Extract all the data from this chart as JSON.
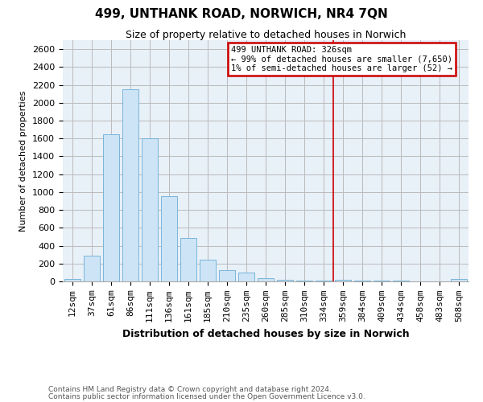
{
  "title": "499, UNTHANK ROAD, NORWICH, NR4 7QN",
  "subtitle": "Size of property relative to detached houses in Norwich",
  "xlabel": "Distribution of detached houses by size in Norwich",
  "ylabel": "Number of detached properties",
  "bar_labels": [
    "12sqm",
    "37sqm",
    "61sqm",
    "86sqm",
    "111sqm",
    "136sqm",
    "161sqm",
    "185sqm",
    "210sqm",
    "235sqm",
    "260sqm",
    "285sqm",
    "310sqm",
    "334sqm",
    "359sqm",
    "384sqm",
    "409sqm",
    "434sqm",
    "458sqm",
    "483sqm",
    "508sqm"
  ],
  "bar_values": [
    25,
    290,
    1650,
    2150,
    1600,
    950,
    490,
    240,
    130,
    100,
    40,
    20,
    10,
    10,
    15,
    8,
    5,
    8,
    2,
    2,
    25
  ],
  "bar_face_color": "#cce4f5",
  "bar_edge_color": "#6aaed6",
  "vline_x_index": 13,
  "vline_color": "#cc0000",
  "annotation_text": "499 UNTHANK ROAD: 326sqm\n← 99% of detached houses are smaller (7,650)\n1% of semi-detached houses are larger (52) →",
  "annotation_box_color": "#ffffff",
  "annotation_box_edge": "#cc0000",
  "footer_line1": "Contains HM Land Registry data © Crown copyright and database right 2024.",
  "footer_line2": "Contains public sector information licensed under the Open Government Licence v3.0.",
  "ylim": [
    0,
    2700
  ],
  "yticks": [
    0,
    200,
    400,
    600,
    800,
    1000,
    1200,
    1400,
    1600,
    1800,
    2000,
    2200,
    2400,
    2600
  ],
  "bg_color": "#e8f0f8",
  "grid_color": "#bbbbbb",
  "title_fontsize": 11,
  "subtitle_fontsize": 9,
  "xlabel_fontsize": 9,
  "ylabel_fontsize": 8,
  "tick_fontsize": 8,
  "footer_fontsize": 6.5
}
